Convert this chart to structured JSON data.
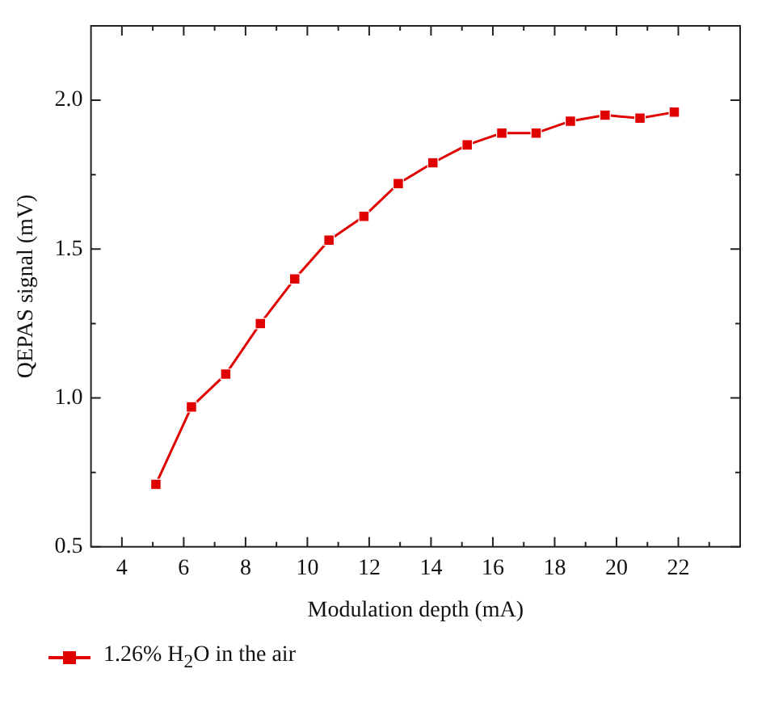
{
  "chart_data": {
    "type": "line",
    "xlabel": "Modulation depth (mA)",
    "ylabel": "QEPAS signal (mV)",
    "xlim": [
      3,
      24
    ],
    "ylim": [
      0.5,
      2.25
    ],
    "xticks": [
      4,
      {
        "value": 5,
        "label": null
      },
      6,
      {
        "value": 7,
        "label": null
      },
      8,
      {
        "value": 9,
        "label": null
      },
      10,
      {
        "value": 11,
        "label": null
      },
      12,
      {
        "value": 13,
        "label": null
      },
      14,
      {
        "value": 15,
        "label": null
      },
      16,
      {
        "value": 17,
        "label": null
      },
      18,
      {
        "value": 19,
        "label": null
      },
      20,
      {
        "value": 21,
        "label": null
      },
      22,
      {
        "value": 23,
        "label": null
      }
    ],
    "yticks": [
      {
        "value": 0.5,
        "label": "0.5"
      },
      {
        "value": 0.75,
        "label": null
      },
      {
        "value": 1,
        "label": "1.0"
      },
      {
        "value": 1.25,
        "label": null
      },
      {
        "value": 1.5,
        "label": "1.5"
      },
      {
        "value": 1.75,
        "label": null
      },
      {
        "value": 2,
        "label": "2.0"
      }
    ],
    "x": [
      5.1,
      6.25,
      7.36,
      8.48,
      9.59,
      10.7,
      11.83,
      12.94,
      14.06,
      15.17,
      16.29,
      17.4,
      18.51,
      19.63,
      20.76,
      21.87
    ],
    "series": [
      {
        "name": "1.26% H$_{2}$O in the air",
        "color": "#e00000",
        "values": [
          0.71,
          0.97,
          1.08,
          1.25,
          1.4,
          1.53,
          1.61,
          1.72,
          1.79,
          1.85,
          1.89,
          1.89,
          1.93,
          1.95,
          1.94,
          1.96
        ]
      }
    ],
    "marker": "square",
    "line_style": "solid",
    "grid": false,
    "legend": "bottom"
  }
}
